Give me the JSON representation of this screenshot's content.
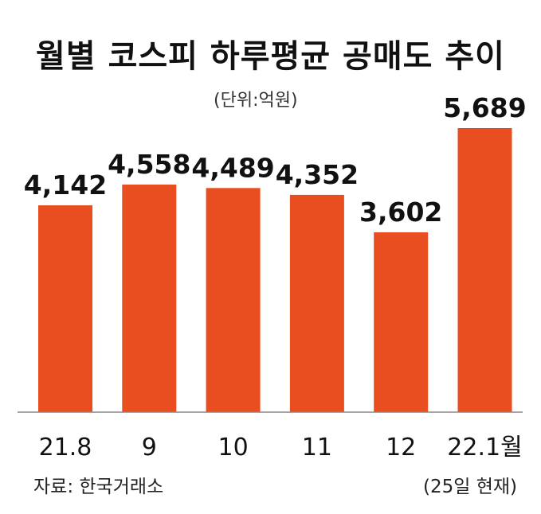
{
  "chart_data": {
    "type": "bar",
    "title": "월별 코스피 하루평균 공매도 추이",
    "unit": "(단위:억원)",
    "categories": [
      "21.8",
      "9",
      "10",
      "11",
      "12",
      "22.1월"
    ],
    "values": [
      4142,
      4558,
      4489,
      4352,
      3602,
      5689
    ],
    "value_labels": [
      "4,142",
      "4,558",
      "4,489",
      "4,352",
      "3,602",
      "5,689"
    ],
    "ylim": [
      0,
      5689
    ],
    "note": "(25일 현재)",
    "source": "자료: 한국거래소",
    "bar_color": "#e84e1f",
    "grid": false
  }
}
